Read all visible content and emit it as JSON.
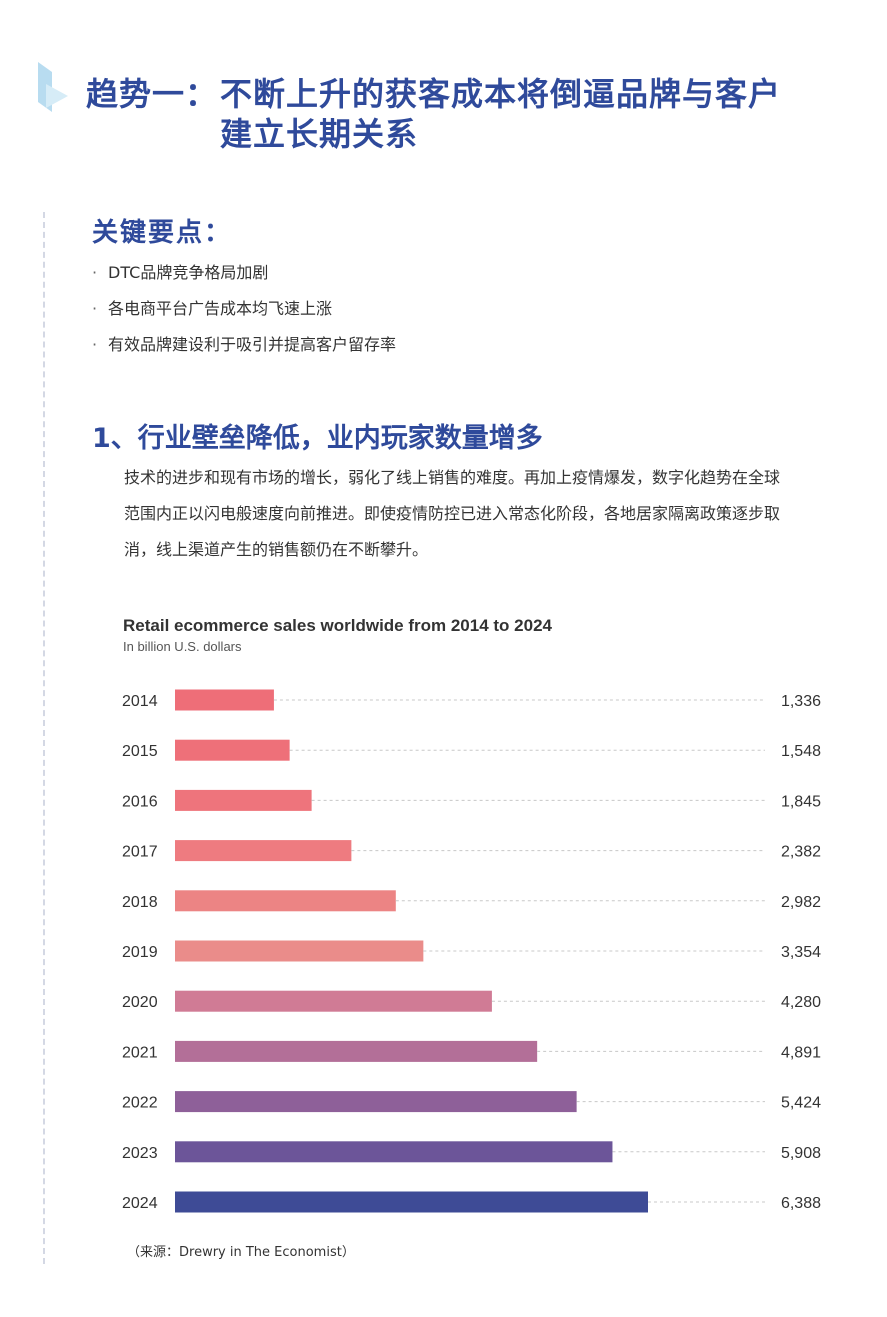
{
  "header": {
    "title_prefix": "趋势一：",
    "title_line1": "不断上升的获客成本将倒逼品牌与客户",
    "title_line2": "建立长期关系"
  },
  "key_points": {
    "title": "关键要点：",
    "bullet_symbol": "·",
    "items": [
      "DTC品牌竞争格局加剧",
      "各电商平台广告成本均飞速上涨",
      "有效品牌建设利于吸引并提高客户留存率"
    ]
  },
  "section1": {
    "title": "1、行业壁垒降低，业内玩家数量增多",
    "lines": [
      "技术的进步和现有市场的增长，弱化了线上销售的难度。再加上疫情爆发，数字化趋势在全球",
      "范围内正以闪电般速度向前推进。即使疫情防控已进入常态化阶段，各地居家隔离政策逐步取",
      "消，线上渠道产生的销售额仍在不断攀升。"
    ]
  },
  "chart_data": {
    "type": "bar",
    "orientation": "horizontal",
    "title": "Retail ecommerce sales worldwide from 2014 to 2024",
    "subtitle": "In billion U.S. dollars",
    "categories": [
      "2014",
      "2015",
      "2016",
      "2017",
      "2018",
      "2019",
      "2020",
      "2021",
      "2022",
      "2023",
      "2024"
    ],
    "values": [
      1336,
      1548,
      1845,
      2382,
      2982,
      3354,
      4280,
      4891,
      5424,
      5908,
      6388
    ],
    "value_labels": [
      "1,336",
      "1,548",
      "1,845",
      "2,382",
      "2,982",
      "3,354",
      "4,280",
      "4,891",
      "5,424",
      "5,908",
      "6,388"
    ],
    "bar_colors": [
      "#ee6e78",
      "#ee7079",
      "#ee747c",
      "#ee7b80",
      "#ec8484",
      "#ea8c8a",
      "#d07b95",
      "#b36f98",
      "#8e6099",
      "#6c5599",
      "#3e4b96"
    ],
    "grid_style": "dotted leader lines to value labels",
    "legend": "none"
  },
  "source": "（来源：Drewry in The Economist）"
}
